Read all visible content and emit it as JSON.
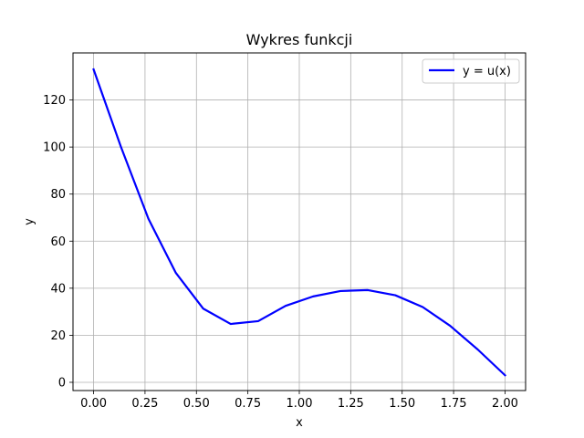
{
  "chart_data": {
    "type": "line",
    "title": "Wykres funkcji",
    "xlabel": "x",
    "ylabel": "y",
    "xlim": [
      -0.1,
      2.1
    ],
    "ylim": [
      -3.5,
      140
    ],
    "grid": true,
    "legend_position": "top-right",
    "x_ticks": [
      0.0,
      0.25,
      0.5,
      0.75,
      1.0,
      1.25,
      1.5,
      1.75,
      2.0
    ],
    "x_tick_labels": [
      "0.00",
      "0.25",
      "0.50",
      "0.75",
      "1.00",
      "1.25",
      "1.50",
      "1.75",
      "2.00"
    ],
    "y_ticks": [
      0,
      20,
      40,
      60,
      80,
      100,
      120
    ],
    "y_tick_labels": [
      "0",
      "20",
      "40",
      "60",
      "80",
      "100",
      "120"
    ],
    "series": [
      {
        "name": "y = u(x)",
        "color": "#0000ff",
        "x": [
          0.0,
          0.1333,
          0.2667,
          0.4,
          0.5333,
          0.6667,
          0.8,
          0.9333,
          1.0667,
          1.2,
          1.3333,
          1.4667,
          1.6,
          1.7333,
          1.8667,
          2.0
        ],
        "y": [
          133,
          100,
          69.5,
          46.5,
          31.3,
          24.8,
          26.0,
          32.5,
          36.5,
          38.8,
          39.2,
          37.0,
          32.0,
          24.0,
          14.0,
          3.0
        ]
      }
    ]
  }
}
